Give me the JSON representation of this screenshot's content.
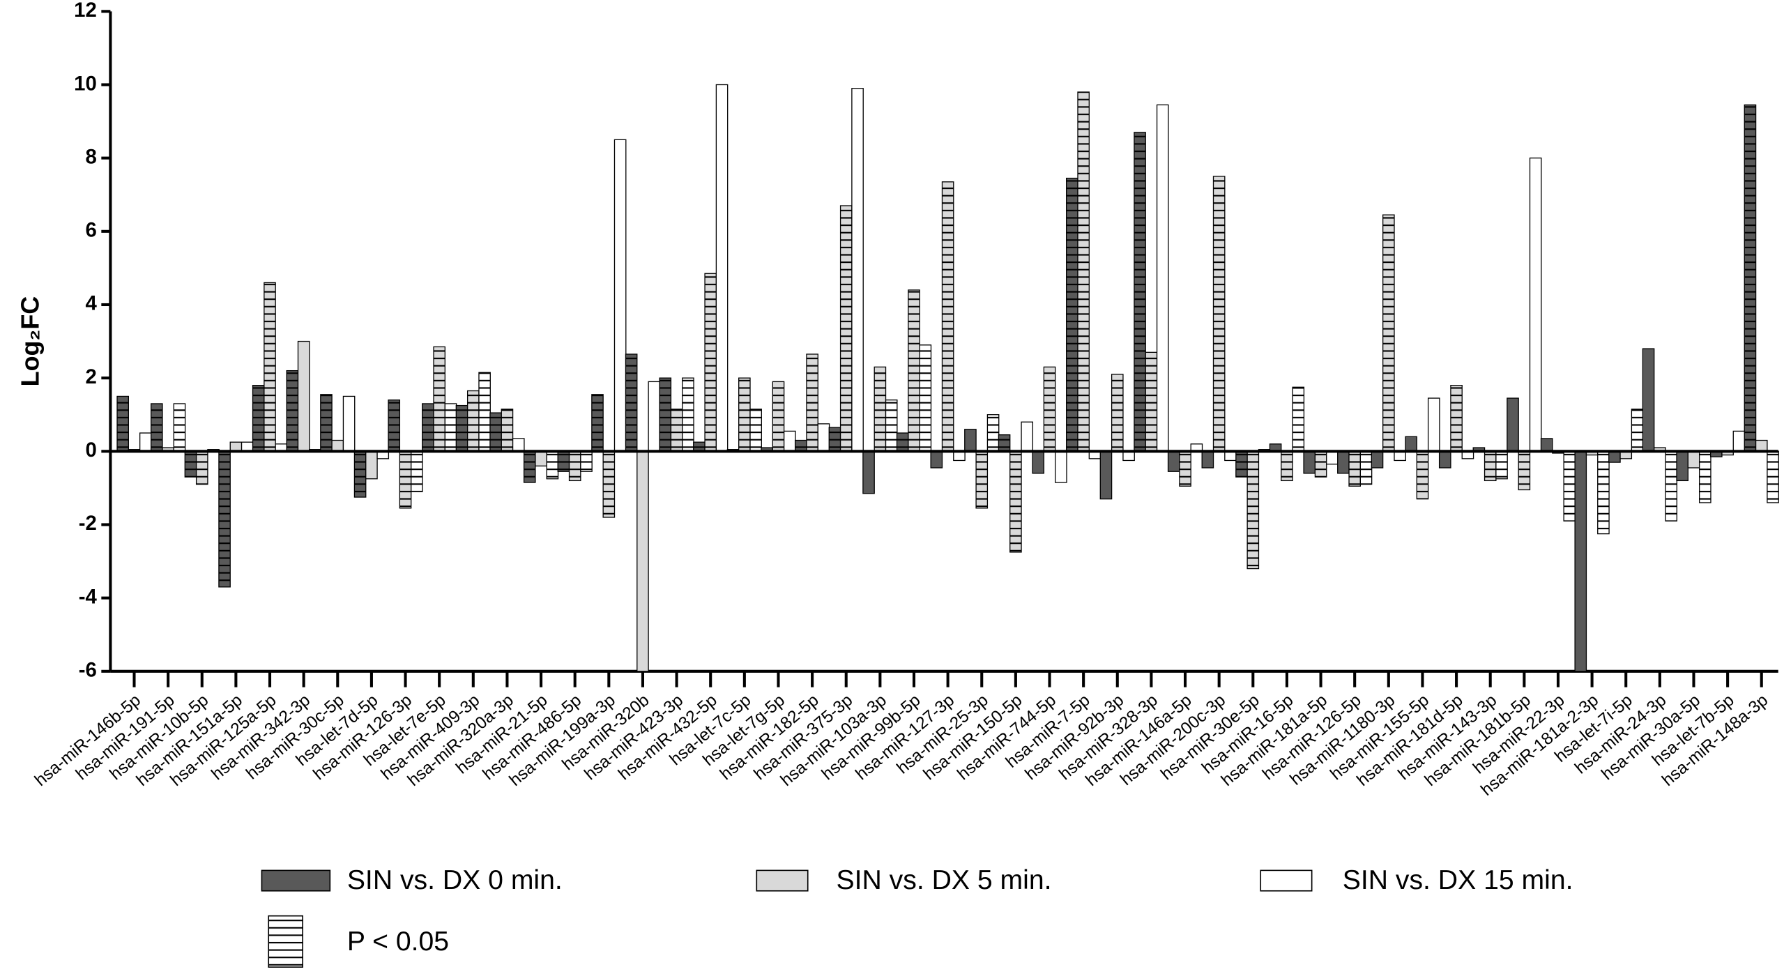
{
  "chart_data": {
    "type": "bar",
    "y_label": "Log₂FC",
    "categories": [
      "hsa-miR-146b-5p",
      "hsa-miR-191-5p",
      "hsa-miR-10b-5p",
      "hsa-miR-151a-5p",
      "hsa-miR-125a-5p",
      "hsa-miR-342-3p",
      "hsa-miR-30c-5p",
      "hsa-let-7d-5p",
      "hsa-miR-126-3p",
      "hsa-let-7e-5p",
      "hsa-miR-409-3p",
      "hsa-miR-320a-3p",
      "hsa-miR-21-5p",
      "hsa-miR-486-5p",
      "hsa-miR-199a-3p",
      "hsa-miR-320b",
      "hsa-miR-423-3p",
      "hsa-miR-432-5p",
      "hsa-let-7c-5p",
      "hsa-let-7g-5p",
      "hsa-miR-182-5p",
      "hsa-miR-375-3p",
      "hsa-miR-103a-3p",
      "hsa-miR-99b-5p",
      "hsa-miR-127-3p",
      "hsa-miR-25-3p",
      "hsa-miR-150-5p",
      "hsa-miR-744-5p",
      "hsa-miR-7-5p",
      "hsa-miR-92b-3p",
      "hsa-miR-328-3p",
      "hsa-miR-146a-5p",
      "hsa-miR-200c-3p",
      "hsa-miR-30e-5p",
      "hsa-miR-16-5p",
      "hsa-miR-181a-5p",
      "hsa-miR-126-5p",
      "hsa-miR-1180-3p",
      "hsa-miR-155-5p",
      "hsa-miR-181d-5p",
      "hsa-miR-143-3p",
      "hsa-miR-181b-5p",
      "hsa-miR-22-3p",
      "hsa-miR-181a-2-3p",
      "hsa-let-7i-5p",
      "hsa-miR-24-3p",
      "hsa-miR-30a-5p",
      "hsa-let-7b-5p",
      "hsa-miR-148a-3p"
    ],
    "series": [
      {
        "name": "SIN vs. DX 0 min.",
        "color": "#595959",
        "values": [
          1.5,
          1.3,
          -0.7,
          -3.7,
          1.8,
          2.2,
          1.55,
          -1.25,
          1.4,
          1.3,
          1.25,
          1.05,
          -0.85,
          -0.55,
          1.55,
          2.65,
          2.0,
          0.25,
          0.05,
          0.1,
          0.3,
          0.65,
          -1.15,
          0.5,
          -0.45,
          0.6,
          0.45,
          -0.6,
          7.45,
          -1.3,
          8.7,
          -0.55,
          -0.45,
          -0.7,
          0.2,
          -0.6,
          -0.6,
          -0.45,
          0.4,
          -0.45,
          0.1,
          1.45,
          0.35,
          -6,
          -0.3,
          2.8,
          -0.8,
          -0.15,
          9.45
        ],
        "sig": [
          true,
          true,
          true,
          true,
          true,
          true,
          true,
          true,
          true,
          true,
          true,
          true,
          true,
          true,
          true,
          true,
          true,
          true,
          false,
          false,
          true,
          true,
          false,
          true,
          false,
          false,
          true,
          false,
          true,
          false,
          true,
          false,
          false,
          true,
          false,
          false,
          false,
          false,
          false,
          false,
          false,
          false,
          false,
          false,
          false,
          false,
          false,
          false,
          true
        ]
      },
      {
        "name": "SIN vs. DX 5 min.",
        "color": "#d9d9d9",
        "values": [
          0.05,
          0.1,
          -0.9,
          0.25,
          4.6,
          3.0,
          0.3,
          -0.75,
          -1.55,
          2.85,
          1.65,
          1.15,
          -0.4,
          -0.8,
          -1.8,
          -6,
          1.15,
          4.85,
          2.0,
          1.9,
          2.65,
          6.7,
          2.3,
          4.4,
          7.35,
          -1.55,
          -2.75,
          2.3,
          9.8,
          2.1,
          2.7,
          -0.95,
          7.5,
          -3.2,
          -0.8,
          -0.7,
          -0.95,
          6.45,
          -1.3,
          1.8,
          -0.8,
          -1.05,
          -0.05,
          -0.1,
          -0.2,
          0.1,
          -0.45,
          -0.1,
          0.3
        ],
        "sig": [
          false,
          false,
          true,
          false,
          true,
          false,
          false,
          false,
          true,
          true,
          true,
          true,
          false,
          true,
          true,
          false,
          true,
          true,
          true,
          true,
          true,
          true,
          true,
          true,
          true,
          true,
          true,
          true,
          true,
          true,
          true,
          true,
          true,
          true,
          true,
          true,
          true,
          true,
          true,
          true,
          true,
          true,
          false,
          false,
          false,
          false,
          false,
          false,
          false
        ]
      },
      {
        "name": "SIN vs. DX 15 min.",
        "color": "#ffffff",
        "values": [
          0.5,
          1.3,
          0.05,
          0.25,
          0.2,
          0.05,
          1.5,
          -0.2,
          -1.1,
          1.3,
          2.15,
          0.35,
          -0.75,
          -0.55,
          8.5,
          1.9,
          2.0,
          10.0,
          1.15,
          0.55,
          0.75,
          9.9,
          1.4,
          2.9,
          -0.25,
          1.0,
          0.8,
          -0.85,
          -0.2,
          -0.25,
          9.45,
          0.2,
          -0.25,
          0.05,
          1.75,
          -0.35,
          -0.9,
          -0.25,
          1.45,
          -0.2,
          -0.75,
          8.0,
          -1.9,
          -2.25,
          1.15,
          -1.9,
          -1.4,
          0.55,
          -1.4
        ],
        "sig": [
          false,
          true,
          false,
          false,
          false,
          false,
          false,
          false,
          true,
          true,
          true,
          false,
          true,
          true,
          false,
          false,
          true,
          false,
          true,
          false,
          false,
          false,
          true,
          true,
          false,
          true,
          false,
          false,
          false,
          false,
          false,
          false,
          false,
          false,
          true,
          false,
          true,
          false,
          false,
          false,
          true,
          false,
          true,
          true,
          true,
          true,
          true,
          false,
          true
        ]
      }
    ],
    "sig_label": "P < 0.05",
    "ylim": [
      -6,
      12
    ],
    "yticks": [
      -6,
      -4,
      -2,
      0,
      2,
      4,
      6,
      8,
      10,
      12
    ],
    "grid": false
  }
}
